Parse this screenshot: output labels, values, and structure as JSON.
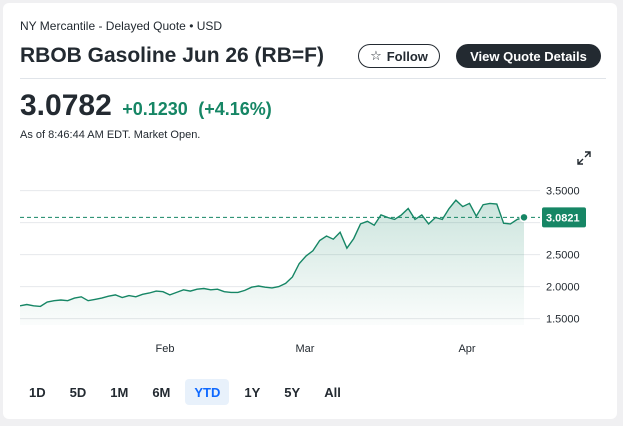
{
  "header": {
    "exchange": "NY Mercantile - Delayed Quote • USD",
    "title": "RBOB Gasoline Jun 26 (RB=F)",
    "follow_label": "Follow",
    "view_quote_label": "View Quote Details"
  },
  "quote": {
    "price": "3.0782",
    "change": "+0.1230",
    "change_percent": "(+4.16%)",
    "as_of": "As of 8:46:44 AM EDT. Market Open."
  },
  "icons": {
    "follow": "star-icon",
    "expand": "expand-icon"
  },
  "colors": {
    "accent_green": "#168665",
    "text": "#232a31",
    "active_range": "#0f69ff"
  },
  "chart_data": {
    "type": "area",
    "x_ticks": [
      "Feb",
      "Mar",
      "Apr"
    ],
    "y_ticks": [
      "3.5000",
      "3.0000",
      "2.5000",
      "2.0000",
      "1.5000"
    ],
    "ylim": [
      1.4,
      3.65
    ],
    "current_price_label": "3.0821",
    "current_price": 3.0821,
    "grid": true,
    "values": [
      1.7,
      1.72,
      1.7,
      1.69,
      1.76,
      1.78,
      1.79,
      1.78,
      1.82,
      1.84,
      1.78,
      1.8,
      1.82,
      1.85,
      1.87,
      1.83,
      1.86,
      1.84,
      1.88,
      1.9,
      1.93,
      1.92,
      1.87,
      1.91,
      1.95,
      1.93,
      1.96,
      1.97,
      1.95,
      1.96,
      1.92,
      1.91,
      1.91,
      1.94,
      1.99,
      2.01,
      1.99,
      1.98,
      2.0,
      2.05,
      2.15,
      2.36,
      2.48,
      2.56,
      2.72,
      2.79,
      2.74,
      2.85,
      2.6,
      2.75,
      2.98,
      3.02,
      2.96,
      3.12,
      3.08,
      3.05,
      3.12,
      3.22,
      3.05,
      3.12,
      2.98,
      3.08,
      3.05,
      3.22,
      3.35,
      3.25,
      3.3,
      3.1,
      3.28,
      3.3,
      3.29,
      2.99,
      2.98,
      3.05,
      3.0821
    ]
  },
  "ranges": [
    "1D",
    "5D",
    "1M",
    "6M",
    "YTD",
    "1Y",
    "5Y",
    "All"
  ],
  "active_range": "YTD"
}
